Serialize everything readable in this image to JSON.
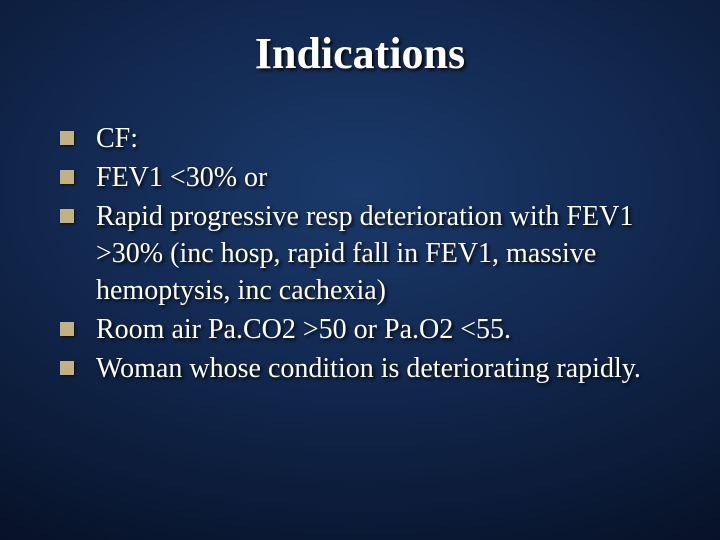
{
  "slide": {
    "title": "Indications",
    "title_fontsize": 44,
    "title_color": "#ffffff",
    "body_fontsize": 28,
    "body_color": "#ffffff",
    "bullet_color": "#c2b280",
    "bullet_size": 14,
    "background_gradient": {
      "inner": "#1a3a6b",
      "mid": "#12284f",
      "outer": "#020510"
    },
    "bullets": [
      "CF:",
      "FEV1 <30% or",
      "Rapid progressive resp deterioration with FEV1 >30% (inc hosp, rapid fall in FEV1, massive hemoptysis, inc cachexia)",
      "Room air Pa.CO2 >50 or Pa.O2 <55.",
      "Woman whose condition is deteriorating rapidly."
    ]
  }
}
